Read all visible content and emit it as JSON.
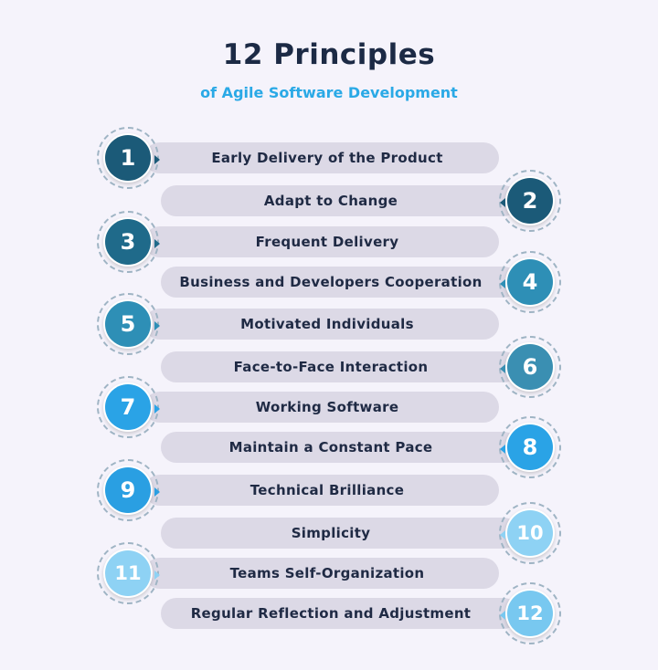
{
  "header": {
    "title": "12 Principles",
    "subtitle": "of Agile Software Development"
  },
  "principles": [
    {
      "number": "1",
      "label": "Early Delivery of the Product",
      "side": "left",
      "color": "#1b5a78"
    },
    {
      "number": "2",
      "label": "Adapt to Change",
      "side": "right",
      "color": "#1b5a78"
    },
    {
      "number": "3",
      "label": "Frequent Delivery",
      "side": "left",
      "color": "#1f6a8a"
    },
    {
      "number": "4",
      "label": "Business and Developers Cooperation",
      "side": "right",
      "color": "#2e8fb6"
    },
    {
      "number": "5",
      "label": "Motivated Individuals",
      "side": "left",
      "color": "#2e8fb6"
    },
    {
      "number": "6",
      "label": "Face-to-Face Interaction",
      "side": "right",
      "color": "#3a8fb2"
    },
    {
      "number": "7",
      "label": "Working Software",
      "side": "left",
      "color": "#2aa3e6"
    },
    {
      "number": "8",
      "label": "Maintain a Constant Pace",
      "side": "right",
      "color": "#2aa3e6"
    },
    {
      "number": "9",
      "label": "Technical Brilliance",
      "side": "left",
      "color": "#2a9fe2"
    },
    {
      "number": "10",
      "label": "Simplicity",
      "side": "right",
      "color": "#8ed2f4"
    },
    {
      "number": "11",
      "label": "Teams Self-Organization",
      "side": "left",
      "color": "#8ed2f4"
    },
    {
      "number": "12",
      "label": "Regular Reflection and Adjustment",
      "side": "right",
      "color": "#78c8f0"
    }
  ]
}
